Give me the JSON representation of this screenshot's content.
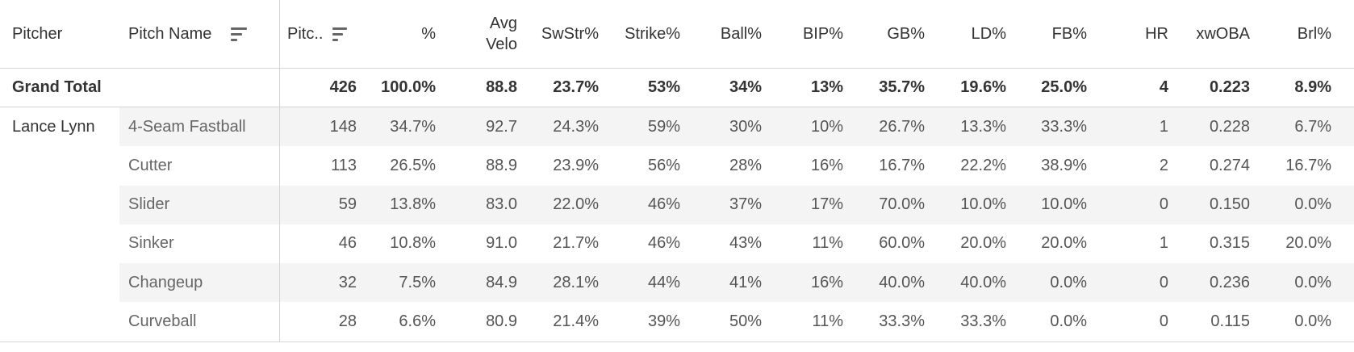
{
  "headers": {
    "pitcher": "Pitcher",
    "pitch_name": "Pitch Name",
    "pitches": "Pitc..",
    "pct": "%",
    "avg_velo_1": "Avg",
    "avg_velo_2": "Velo",
    "swstr": "SwStr%",
    "strike": "Strike%",
    "ball": "Ball%",
    "bip": "BIP%",
    "gb": "GB%",
    "ld": "LD%",
    "fb": "FB%",
    "hr": "HR",
    "xwoba": "xwOBA",
    "brl": "Brl%"
  },
  "grand_total": {
    "label": "Grand Total",
    "values": [
      "426",
      "100.0%",
      "88.8",
      "23.7%",
      "53%",
      "34%",
      "13%",
      "35.7%",
      "19.6%",
      "25.0%",
      "4",
      "0.223",
      "8.9%"
    ]
  },
  "pitcher_name": "Lance Lynn",
  "rows": [
    {
      "name": "4-Seam Fastball",
      "values": [
        "148",
        "34.7%",
        "92.7",
        "24.3%",
        "59%",
        "30%",
        "10%",
        "26.7%",
        "13.3%",
        "33.3%",
        "1",
        "0.228",
        "6.7%"
      ]
    },
    {
      "name": "Cutter",
      "values": [
        "113",
        "26.5%",
        "88.9",
        "23.9%",
        "56%",
        "28%",
        "16%",
        "16.7%",
        "22.2%",
        "38.9%",
        "2",
        "0.274",
        "16.7%"
      ]
    },
    {
      "name": "Slider",
      "values": [
        "59",
        "13.8%",
        "83.0",
        "22.0%",
        "46%",
        "37%",
        "17%",
        "70.0%",
        "10.0%",
        "10.0%",
        "0",
        "0.150",
        "0.0%"
      ]
    },
    {
      "name": "Sinker",
      "values": [
        "46",
        "10.8%",
        "91.0",
        "21.7%",
        "46%",
        "43%",
        "11%",
        "60.0%",
        "20.0%",
        "20.0%",
        "1",
        "0.315",
        "20.0%"
      ]
    },
    {
      "name": "Changeup",
      "values": [
        "32",
        "7.5%",
        "84.9",
        "28.1%",
        "44%",
        "41%",
        "16%",
        "40.0%",
        "40.0%",
        "0.0%",
        "0",
        "0.236",
        "0.0%"
      ]
    },
    {
      "name": "Curveball",
      "values": [
        "28",
        "6.6%",
        "80.9",
        "21.4%",
        "39%",
        "50%",
        "11%",
        "33.3%",
        "33.3%",
        "0.0%",
        "0",
        "0.115",
        "0.0%"
      ]
    }
  ],
  "colors": {
    "row_shade": "#f4f4f4",
    "border": "#d4d4d4",
    "text": "#333333",
    "sub_text": "#666666"
  },
  "icons": {
    "sort": "sort-descending-icon"
  }
}
